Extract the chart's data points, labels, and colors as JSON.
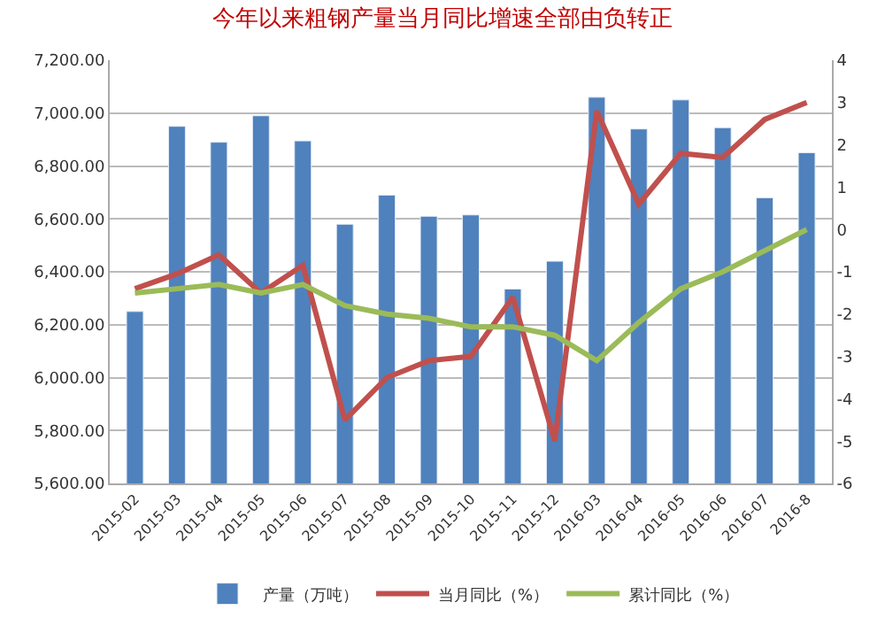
{
  "chart_data": {
    "type": "bar",
    "title": "今年以来粗钢产量当月同比增速全部由负转正",
    "categories": [
      "2015-02",
      "2015-03",
      "2015-04",
      "2015-05",
      "2015-06",
      "2015-07",
      "2015-08",
      "2015-09",
      "2015-10",
      "2015-11",
      "2015-12",
      "2016-03",
      "2016-04",
      "2016-05",
      "2016-06",
      "2016-07",
      "2016-8"
    ],
    "series": [
      {
        "name": "产量（万吨）",
        "color": "#4f81bd",
        "values": [
          6250,
          6950,
          6890,
          6990,
          6895,
          6580,
          6690,
          6610,
          6615,
          6335,
          6440,
          7060,
          6940,
          7050,
          6945,
          6680,
          6850
        ]
      },
      {
        "name": "当月同比（%）",
        "type": "line",
        "axis": "y2",
        "color": "#c0504d",
        "values": [
          -1.4,
          -1.05,
          -0.6,
          -1.5,
          -0.85,
          -4.5,
          -3.5,
          -3.1,
          -3.0,
          -1.6,
          -5.0,
          2.8,
          0.6,
          1.8,
          1.7,
          2.6,
          3.0
        ]
      },
      {
        "name": "累计同比（%）",
        "type": "line",
        "axis": "y2",
        "color": "#9bbb59",
        "values": [
          -1.5,
          -1.4,
          -1.3,
          -1.5,
          -1.3,
          -1.8,
          -2.0,
          -2.1,
          -2.3,
          -2.3,
          -2.5,
          -3.1,
          -2.2,
          -1.4,
          -1.0,
          -0.5,
          0.0
        ]
      }
    ],
    "ylim": [
      5600,
      7200
    ],
    "yticks": [
      {
        "value": 5600,
        "label": "5,600.00"
      },
      {
        "value": 5800,
        "label": "5,800.00"
      },
      {
        "value": 6000,
        "label": "6,000.00"
      },
      {
        "value": 6200,
        "label": "6,200.00"
      },
      {
        "value": 6400,
        "label": "6,400.00"
      },
      {
        "value": 6600,
        "label": "6,600.00"
      },
      {
        "value": 6800,
        "label": "6,800.00"
      },
      {
        "value": 7000,
        "label": "7,000.00"
      },
      {
        "value": 7200,
        "label": "7,200.00"
      }
    ],
    "y2lim": [
      -6,
      4
    ],
    "y2ticks": [
      -6,
      -5,
      -4,
      -3,
      -2,
      -1,
      0,
      1,
      2,
      3,
      4
    ],
    "grid": "y",
    "legend": "bottom",
    "marker": "none",
    "line_style": "solid"
  }
}
